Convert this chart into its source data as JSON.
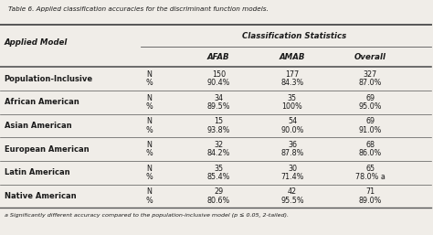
{
  "title": "Table 6. Applied classification accuracies for the discriminant function models.",
  "header1": "Classification Statistics",
  "col_headers": [
    "AFAB",
    "AMAB",
    "Overall"
  ],
  "row_label_col": "Applied Model",
  "rows": [
    {
      "model": "Population-Inclusive",
      "afab": [
        "150",
        "90.4%"
      ],
      "amab": [
        "177",
        "84.3%"
      ],
      "overall": [
        "327",
        "87.0%"
      ]
    },
    {
      "model": "African American",
      "afab": [
        "34",
        "89.5%"
      ],
      "amab": [
        "35",
        "100%"
      ],
      "overall": [
        "69",
        "95.0%"
      ]
    },
    {
      "model": "Asian American",
      "afab": [
        "15",
        "93.8%"
      ],
      "amab": [
        "54",
        "90.0%"
      ],
      "overall": [
        "69",
        "91.0%"
      ]
    },
    {
      "model": "European American",
      "afab": [
        "32",
        "84.2%"
      ],
      "amab": [
        "36",
        "87.8%"
      ],
      "overall": [
        "68",
        "86.0%"
      ]
    },
    {
      "model": "Latin American",
      "afab": [
        "35",
        "85.4%"
      ],
      "amab": [
        "30",
        "71.4%"
      ],
      "overall": [
        "65",
        "78.0% a"
      ]
    },
    {
      "model": "Native American",
      "afab": [
        "29",
        "80.6%"
      ],
      "amab": [
        "42",
        "95.5%"
      ],
      "overall": [
        "71",
        "89.0%"
      ]
    }
  ],
  "footnote": "a Significantly different accuracy compared to the population-inclusive model (p ≤ 0.05, 2-tailed).",
  "bg_color": "#f0ede8",
  "text_color": "#1a1a1a",
  "line_color": "#555555"
}
